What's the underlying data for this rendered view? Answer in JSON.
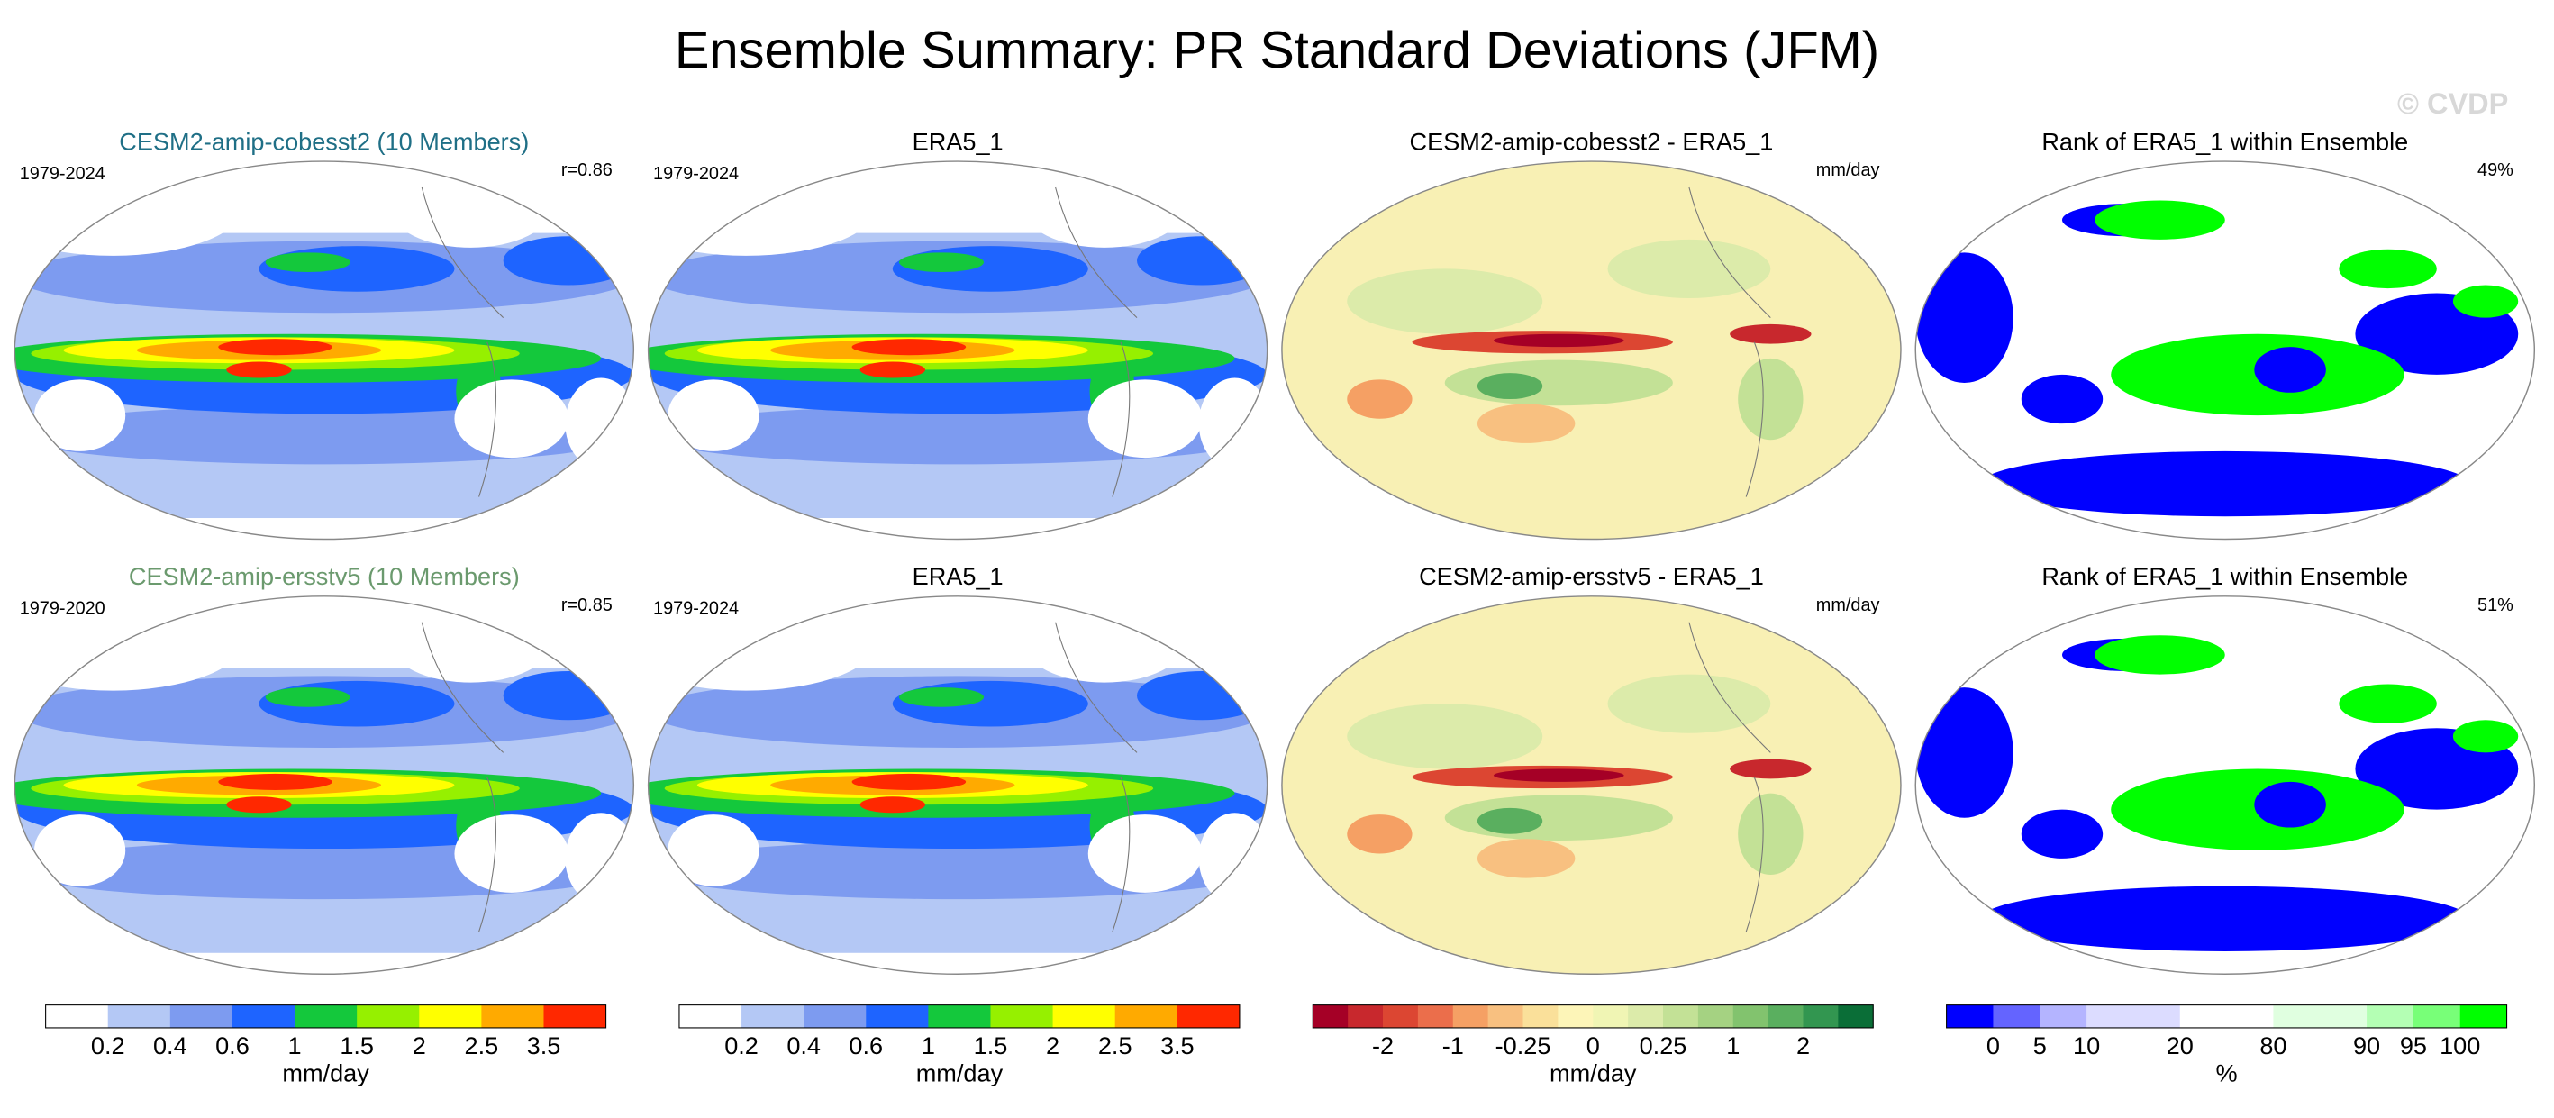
{
  "title": "Ensemble Summary: PR Standard Deviations (JFM)",
  "watermark": "© CVDP",
  "rows": [
    {
      "panels": [
        {
          "title": "CESM2-amip-cobesst2 (10 Members)",
          "title_color": "#1f6f86",
          "years": "1979-2024",
          "stat": "r=0.86"
        },
        {
          "title": "ERA5_1",
          "years": "1979-2024"
        },
        {
          "title": "CESM2-amip-cobesst2 - ERA5_1",
          "stat": "mm/day"
        },
        {
          "title": "Rank of ERA5_1 within Ensemble",
          "stat": "49%"
        }
      ]
    },
    {
      "panels": [
        {
          "title": "CESM2-amip-ersstv5 (10 Members)",
          "title_color": "#6b9a6e",
          "years": "1979-2020",
          "stat": "r=0.85"
        },
        {
          "title": "ERA5_1",
          "years": "1979-2024"
        },
        {
          "title": "CESM2-amip-ersstv5 - ERA5_1",
          "stat": "mm/day"
        },
        {
          "title": "Rank of ERA5_1 within Ensemble",
          "stat": "51%"
        }
      ]
    }
  ],
  "colorbars": [
    {
      "colors": [
        "#ffffff",
        "#b4c8f5",
        "#7d9bf0",
        "#1e64ff",
        "#14c83c",
        "#96f000",
        "#ffff00",
        "#ffaa00",
        "#ff2800"
      ],
      "labels": [
        "0.2",
        "0.4",
        "0.6",
        "1",
        "1.5",
        "2",
        "2.5",
        "3.5"
      ],
      "unit": "mm/day"
    },
    {
      "colors": [
        "#ffffff",
        "#b4c8f5",
        "#7d9bf0",
        "#1e64ff",
        "#14c83c",
        "#96f000",
        "#ffff00",
        "#ffaa00",
        "#ff2800"
      ],
      "labels": [
        "0.2",
        "0.4",
        "0.6",
        "1",
        "1.5",
        "2",
        "2.5",
        "3.5"
      ],
      "unit": "mm/day"
    },
    {
      "colors": [
        "#a50026",
        "#c8282d",
        "#dc4632",
        "#eb6e4b",
        "#f5a064",
        "#f8c080",
        "#fae09a",
        "#fdf5b8",
        "#f0f5b4",
        "#dcebaa",
        "#c3e196",
        "#a5d282",
        "#82c36e",
        "#5aaf5f",
        "#329650",
        "#0a6e37"
      ],
      "labels": [
        null,
        "-2",
        null,
        "-1",
        null,
        "-0.25",
        null,
        "0",
        null,
        "0.25",
        null,
        "1",
        null,
        "2",
        null
      ],
      "unit": "mm/day"
    },
    {
      "colors": [
        "#0000ff",
        "#6464ff",
        "#b4b4ff",
        "#dcdcff",
        "#dcdcff",
        "#ffffff",
        "#ffffff",
        "#e0ffe0",
        "#e0ffe0",
        "#b4ffb4",
        "#78ff78",
        "#00ff00"
      ],
      "labels": [
        "0",
        "5",
        "10",
        null,
        "20",
        null,
        "80",
        null,
        "90",
        "95",
        "100"
      ],
      "unit": "%"
    }
  ]
}
